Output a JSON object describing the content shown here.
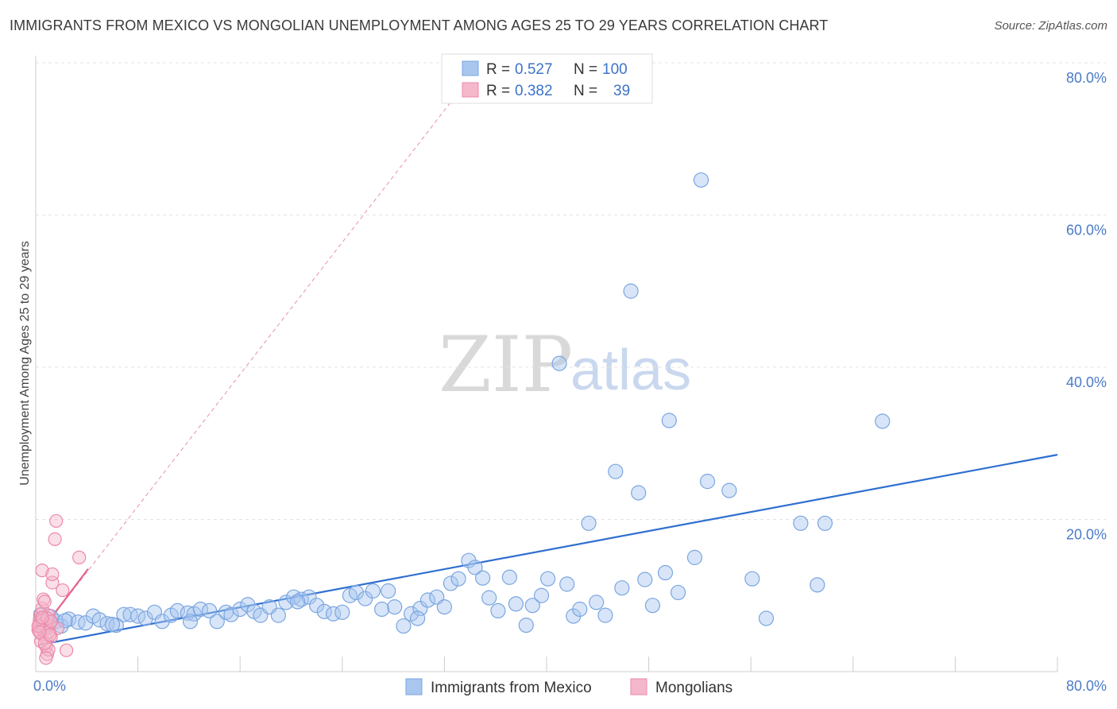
{
  "header": {
    "title": "IMMIGRANTS FROM MEXICO VS MONGOLIAN UNEMPLOYMENT AMONG AGES 25 TO 29 YEARS CORRELATION CHART",
    "source": "Source: ZipAtlas.com"
  },
  "watermark": {
    "zip": "ZIP",
    "atlas": "atlas"
  },
  "stats_legend": {
    "rows": [
      {
        "r_label": "R = ",
        "r_value": "0.527",
        "n_label": "N = ",
        "n_value": "100",
        "color": "#a9c6ef"
      },
      {
        "r_label": "R = ",
        "r_value": "0.382",
        "n_label": "N = ",
        "n_value": "39",
        "color": "#f5b8cb"
      }
    ]
  },
  "chart_data": {
    "type": "scatter",
    "title": "IMMIGRANTS FROM MEXICO VS MONGOLIAN UNEMPLOYMENT AMONG AGES 25 TO 29 YEARS CORRELATION CHART",
    "xlabel": "",
    "ylabel": "Unemployment Among Ages 25 to 29 years",
    "xlim": [
      0,
      80
    ],
    "ylim": [
      0,
      80
    ],
    "x_tick_labels": [
      "0.0%",
      "80.0%"
    ],
    "y_tick_labels": [
      "20.0%",
      "40.0%",
      "60.0%",
      "80.0%"
    ],
    "y_ticks": [
      20,
      40,
      60,
      80
    ],
    "grid": true,
    "legend": [
      "Immigrants from Mexico",
      "Mongolians"
    ],
    "series": [
      {
        "name": "Immigrants from Mexico",
        "color": "#7aa6e0",
        "fill": "#a9c6ef",
        "trend": {
          "x": [
            0.2,
            80
          ],
          "y": [
            3.5,
            28.5
          ],
          "color": "#2f6fd0"
        },
        "points": [
          [
            0.5,
            6.8
          ],
          [
            0.9,
            6.3
          ],
          [
            1.2,
            7.2
          ],
          [
            1.6,
            6.6
          ],
          [
            2.0,
            6.0
          ],
          [
            2.6,
            6.9
          ],
          [
            3.3,
            6.5
          ],
          [
            3.9,
            6.4
          ],
          [
            4.5,
            7.3
          ],
          [
            5.0,
            6.8
          ],
          [
            5.6,
            6.3
          ],
          [
            6.3,
            6.1
          ],
          [
            6.9,
            7.5
          ],
          [
            7.4,
            7.5
          ],
          [
            8.0,
            7.3
          ],
          [
            8.6,
            7.0
          ],
          [
            9.3,
            7.8
          ],
          [
            9.9,
            6.6
          ],
          [
            10.6,
            7.4
          ],
          [
            11.1,
            8.0
          ],
          [
            11.9,
            7.7
          ],
          [
            12.4,
            7.6
          ],
          [
            12.9,
            8.2
          ],
          [
            13.6,
            8.0
          ],
          [
            14.2,
            6.6
          ],
          [
            14.9,
            7.8
          ],
          [
            15.3,
            7.5
          ],
          [
            16.0,
            8.2
          ],
          [
            16.6,
            8.8
          ],
          [
            17.1,
            7.9
          ],
          [
            17.6,
            7.4
          ],
          [
            18.3,
            8.5
          ],
          [
            19.0,
            7.4
          ],
          [
            19.6,
            9.1
          ],
          [
            20.2,
            9.8
          ],
          [
            20.8,
            9.5
          ],
          [
            21.4,
            9.8
          ],
          [
            22.0,
            8.7
          ],
          [
            22.6,
            7.9
          ],
          [
            23.3,
            7.6
          ],
          [
            24.0,
            7.8
          ],
          [
            24.6,
            10.0
          ],
          [
            25.1,
            10.4
          ],
          [
            25.8,
            9.6
          ],
          [
            26.4,
            10.6
          ],
          [
            27.1,
            8.2
          ],
          [
            27.6,
            10.6
          ],
          [
            28.1,
            8.5
          ],
          [
            28.8,
            6.0
          ],
          [
            29.4,
            7.6
          ],
          [
            30.1,
            8.3
          ],
          [
            30.7,
            9.4
          ],
          [
            31.4,
            9.8
          ],
          [
            32.0,
            8.5
          ],
          [
            32.5,
            11.6
          ],
          [
            33.1,
            12.2
          ],
          [
            33.9,
            14.6
          ],
          [
            34.4,
            13.7
          ],
          [
            35.0,
            12.3
          ],
          [
            35.5,
            9.7
          ],
          [
            36.2,
            8.0
          ],
          [
            37.1,
            12.4
          ],
          [
            37.6,
            8.9
          ],
          [
            38.4,
            6.1
          ],
          [
            38.9,
            8.7
          ],
          [
            39.6,
            10.0
          ],
          [
            40.1,
            12.2
          ],
          [
            41.0,
            40.5
          ],
          [
            41.6,
            11.5
          ],
          [
            42.1,
            7.3
          ],
          [
            42.6,
            8.2
          ],
          [
            43.3,
            19.5
          ],
          [
            43.9,
            9.1
          ],
          [
            44.6,
            7.4
          ],
          [
            45.4,
            26.3
          ],
          [
            45.9,
            11.0
          ],
          [
            46.6,
            50.0
          ],
          [
            47.2,
            23.5
          ],
          [
            47.7,
            12.1
          ],
          [
            48.3,
            8.7
          ],
          [
            49.3,
            13.0
          ],
          [
            49.6,
            33.0
          ],
          [
            50.3,
            10.4
          ],
          [
            51.6,
            15.0
          ],
          [
            52.1,
            64.6
          ],
          [
            52.6,
            25.0
          ],
          [
            54.3,
            23.8
          ],
          [
            56.1,
            12.2
          ],
          [
            57.2,
            7.0
          ],
          [
            59.9,
            19.5
          ],
          [
            61.2,
            11.4
          ],
          [
            61.8,
            19.5
          ],
          [
            66.3,
            32.9
          ],
          [
            0.4,
            7.5
          ],
          [
            1.1,
            6.5
          ],
          [
            2.3,
            6.7
          ],
          [
            6.0,
            6.2
          ],
          [
            12.1,
            6.6
          ],
          [
            20.5,
            9.2
          ],
          [
            29.9,
            7.0
          ]
        ]
      },
      {
        "name": "Mongolians",
        "color": "#ec88a8",
        "fill": "#f5b8cb",
        "trend": {
          "x": [
            0.05,
            4.1
          ],
          "y": [
            4.5,
            13.5
          ],
          "color": "#e2648f"
        },
        "trend_extended": {
          "x": [
            0.05,
            33.5
          ],
          "y": [
            4.5,
            77.0
          ],
          "color": "#e88fad"
        },
        "points": [
          [
            0.2,
            5.5
          ],
          [
            0.3,
            6.8
          ],
          [
            0.4,
            7.5
          ],
          [
            0.4,
            5.0
          ],
          [
            0.5,
            8.3
          ],
          [
            0.5,
            13.3
          ],
          [
            0.6,
            9.5
          ],
          [
            0.6,
            6.3
          ],
          [
            0.7,
            5.8
          ],
          [
            0.7,
            9.2
          ],
          [
            0.8,
            4.5
          ],
          [
            0.8,
            3.3
          ],
          [
            0.9,
            2.3
          ],
          [
            0.9,
            5.8
          ],
          [
            1.0,
            7.4
          ],
          [
            1.0,
            2.9
          ],
          [
            1.1,
            6.1
          ],
          [
            1.2,
            4.6
          ],
          [
            1.3,
            11.7
          ],
          [
            1.3,
            12.8
          ],
          [
            1.5,
            17.4
          ],
          [
            1.6,
            19.8
          ],
          [
            1.7,
            5.7
          ],
          [
            2.1,
            10.7
          ],
          [
            2.4,
            2.8
          ],
          [
            3.4,
            15.0
          ],
          [
            0.3,
            6.3
          ],
          [
            0.4,
            4.0
          ],
          [
            0.5,
            6.7
          ],
          [
            0.6,
            5.4
          ],
          [
            0.7,
            3.7
          ],
          [
            0.9,
            7.0
          ],
          [
            1.0,
            5.2
          ],
          [
            1.1,
            4.8
          ],
          [
            0.2,
            6.0
          ],
          [
            0.3,
            5.2
          ],
          [
            0.8,
            1.8
          ],
          [
            1.2,
            6.6
          ],
          [
            0.5,
            7.1
          ]
        ]
      }
    ]
  }
}
